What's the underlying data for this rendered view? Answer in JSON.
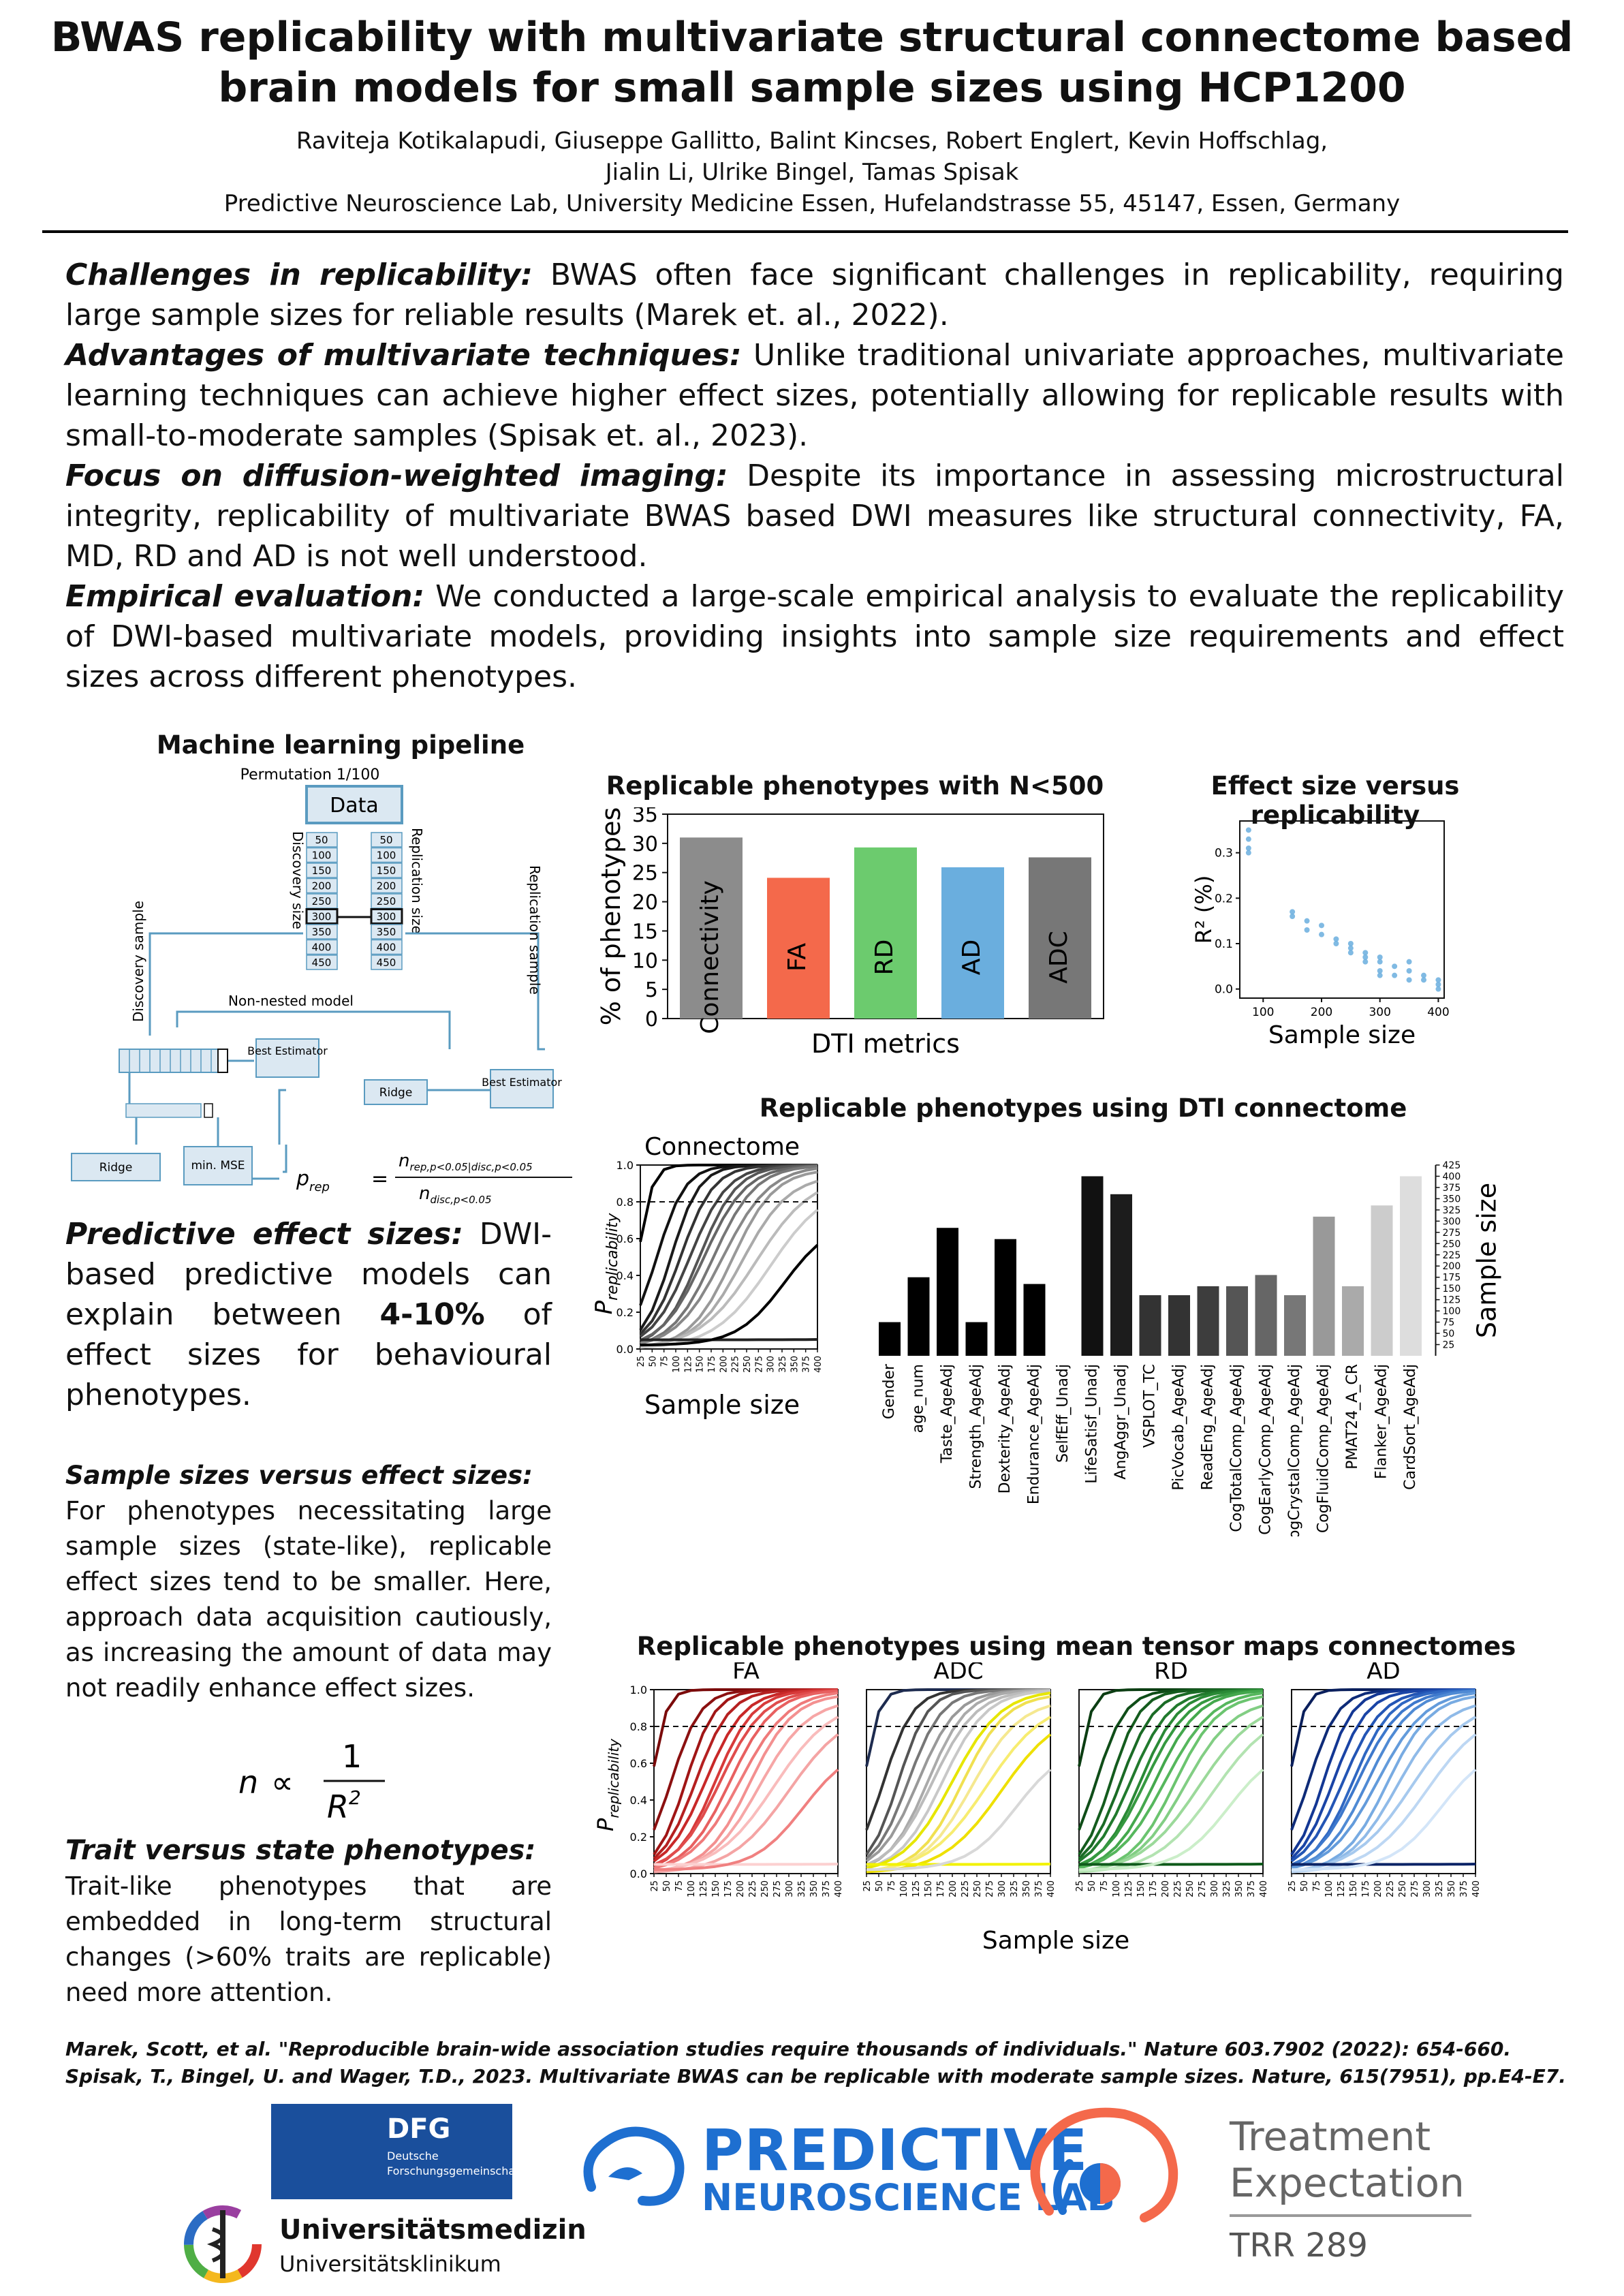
{
  "header": {
    "title_line1": "BWAS replicability with multivariate structural connectome based",
    "title_line2": "brain models for small sample sizes using HCP1200",
    "authors_line1": "Raviteja Kotikalapudi, Giuseppe Gallitto, Balint Kincses, Robert Englert, Kevin Hoffschlag,",
    "authors_line2": "Jialin Li, Ulrike Bingel, Tamas Spisak",
    "affiliation": "Predictive Neuroscience Lab, University Medicine Essen, Hufelandstrasse 55, 45147, Essen, Germany"
  },
  "intro": [
    {
      "heading": "Challenges in replicability:",
      "text": " BWAS often face significant challenges in replicability, requiring large sample sizes for reliable results (Marek et. al., 2022)."
    },
    {
      "heading": "Advantages of multivariate techniques:",
      "text": " Unlike traditional univariate approaches, multivariate learning techniques can achieve higher effect sizes, potentially allowing for replicable results with small-to-moderate samples (Spisak et. al., 2023)."
    },
    {
      "heading": "Focus on diffusion-weighted imaging:",
      "text": " Despite its importance in assessing microstructural integrity, replicability of multivariate BWAS based DWI measures like structural connectivity, FA, MD, RD and AD is not well understood."
    },
    {
      "heading": "Empirical evaluation:",
      "text": " We conducted a large-scale empirical analysis to evaluate the replicability of DWI-based multivariate models, providing insights into sample size requirements and effect sizes across different phenotypes."
    }
  ],
  "pipeline": {
    "title": "Machine learning pipeline",
    "permutation": "Permutation 1/100",
    "data": "Data",
    "discovery_size": "Discovery size",
    "replication_size": "Replication size",
    "sizes": [
      "50",
      "100",
      "150",
      "200",
      "250",
      "300",
      "350",
      "400",
      "450"
    ],
    "discovery_sample": "Discovery sample",
    "replication_sample": "Replication sample",
    "non_nested": "Non-nested model",
    "best_estimator": "Best Estimator",
    "ridge": "Ridge",
    "min_mse": "min. MSE",
    "formula_lhs": "p",
    "formula_lhs_sub": "rep",
    "formula_num": "n",
    "formula_num_sub": "rep,p<0.05|disc,p<0.05",
    "formula_den": "n",
    "formula_den_sub": "disc,p<0.05"
  },
  "left_text": {
    "pred_heading": "Predictive effect sizes:",
    "pred_a": " DWI-based predictive models can explain between ",
    "pred_bold": "4-10%",
    "pred_b": " of effect sizes for behavioural phenotypes.",
    "samp_heading": "Sample sizes versus effect sizes:",
    "samp_text": "For phenotypes necessitating large sample sizes (state-like), replicable effect sizes tend to be smaller. Here, approach data acquisition cautiously, as increasing the amount of data may not readily enhance effect sizes.",
    "formula_n": "n",
    "formula_prop": "∝",
    "formula_one": "1",
    "formula_R": "R",
    "formula_sq": "2",
    "trait_heading": "Trait versus state phenotypes:",
    "trait_text": "Trait-like phenotypes that are embedded in long-term structural changes (>60% traits are replicable) need more attention."
  },
  "bar_chart": {
    "title": "Replicable phenotypes with N<500",
    "xlabel": "DTI metrics",
    "ylabel": "% of phenotypes",
    "yticks": [
      "0",
      "5",
      "10",
      "15",
      "20",
      "25",
      "30",
      "35"
    ]
  },
  "scatter_chart": {
    "title": "Effect size versus replicability",
    "xlabel": "Sample size",
    "ylabel": "R² (%)",
    "xticks": [
      "100",
      "200",
      "300",
      "400"
    ],
    "yticks": [
      "0.0",
      "0.1",
      "0.2",
      "0.3"
    ]
  },
  "dti_chart": {
    "title": "Replicable phenotypes using DTI connectome",
    "panel": "Connectome",
    "xlabel": "Sample size",
    "ylabel": "P",
    "ylabel_sub": "replicability",
    "right_label": "Sample size",
    "yticks": [
      "0.0",
      "0.2",
      "0.4",
      "0.6",
      "0.8",
      "1.0"
    ],
    "xticks": [
      "25",
      "50",
      "75",
      "100",
      "125",
      "150",
      "175",
      "200",
      "225",
      "250",
      "275",
      "300",
      "325",
      "350",
      "375",
      "400"
    ],
    "right_ticks": [
      "25",
      "50",
      "75",
      "100",
      "125",
      "150",
      "175",
      "200",
      "225",
      "250",
      "275",
      "300",
      "325",
      "350",
      "375",
      "400",
      "425"
    ]
  },
  "tensor_chart": {
    "title": "Replicable phenotypes using mean tensor maps connectomes",
    "panels": [
      "FA",
      "ADC",
      "RD",
      "AD"
    ],
    "xlabel": "Sample size",
    "ylabel": "P",
    "ylabel_sub": "replicability",
    "yticks": [
      "0.0",
      "0.2",
      "0.4",
      "0.6",
      "0.8",
      "1.0"
    ],
    "xticks": [
      "25",
      "50",
      "75",
      "100",
      "125",
      "150",
      "175",
      "200",
      "225",
      "250",
      "275",
      "300",
      "325",
      "350",
      "375",
      "400"
    ]
  },
  "refs": [
    "Marek, Scott, et al. \"Reproducible brain-wide association studies require thousands of individuals.\" Nature 603.7902 (2022): 654-660.",
    "Spisak, T., Bingel, U. and Wager, T.D., 2023. Multivariate BWAS can be replicable with moderate sample sizes. Nature, 615(7951), pp.E4-E7."
  ],
  "logos": {
    "dfg": "DFG",
    "dfg_sub1": "Deutsche",
    "dfg_sub2": "Forschungsgemeinschaft",
    "uni1": "Universitätsmedizin",
    "uni2": "Universitätsklinikum",
    "pnl1": "PREDICTIVE",
    "pnl2": "NEUROSCIENCE LAB",
    "te1": "Treatment",
    "te2": "Expectation",
    "te3": "TRR 289"
  },
  "colors": {
    "connectivity": "#8c8c8c",
    "FA": "#f4694b",
    "RD": "#6ccb6e",
    "AD": "#6aaede",
    "ADC": "#777777"
  },
  "chart_data": [
    {
      "type": "bar",
      "title": "Replicable phenotypes with N<500",
      "xlabel": "DTI metrics",
      "ylabel": "% of phenotypes",
      "categories": [
        "Connectivity",
        "FA",
        "RD",
        "AD",
        "ADC"
      ],
      "values": [
        31.0,
        24.1,
        29.3,
        25.9,
        27.6
      ],
      "ylim": [
        0,
        35
      ]
    },
    {
      "type": "scatter",
      "title": "Effect size versus replicability",
      "xlabel": "Sample size",
      "ylabel": "R² (%)",
      "xlim": [
        60,
        410
      ],
      "ylim": [
        -0.02,
        0.37
      ],
      "x": [
        75,
        75,
        75,
        75,
        150,
        150,
        175,
        175,
        200,
        200,
        225,
        225,
        250,
        250,
        250,
        275,
        275,
        275,
        300,
        300,
        300,
        300,
        325,
        325,
        350,
        350,
        350,
        375,
        375,
        400,
        400,
        400
      ],
      "y": [
        0.35,
        0.33,
        0.31,
        0.3,
        0.17,
        0.16,
        0.15,
        0.13,
        0.14,
        0.12,
        0.11,
        0.1,
        0.1,
        0.09,
        0.08,
        0.08,
        0.07,
        0.06,
        0.07,
        0.06,
        0.04,
        0.03,
        0.05,
        0.03,
        0.06,
        0.04,
        0.02,
        0.03,
        0.02,
        0.02,
        0.01,
        0.0
      ]
    },
    {
      "type": "bar",
      "title": "Replicable phenotypes using DTI connectome",
      "ylabel": "Sample size",
      "categories": [
        "Gender",
        "age_num",
        "Taste_AgeAdj",
        "Strength_AgeAdj",
        "Dexterity_AgeAdj",
        "Endurance_AgeAdj",
        "SelfEff_Unadj",
        "LifeSatisf_Unadj",
        "AngAggr_Unadj",
        "VSPLOT_TC",
        "PicVocab_AgeAdj",
        "ReadEng_AgeAdj",
        "CogTotalComp_AgeAdj",
        "CogEarlyComp_AgeAdj",
        "CogCrystalComp_AgeAdj",
        "CogFluidComp_AgeAdj",
        "PMAT24_A_CR",
        "Flanker_AgeAdj",
        "CardSort_AgeAdj"
      ],
      "values": [
        75,
        175,
        285,
        75,
        260,
        160,
        0,
        400,
        360,
        135,
        135,
        155,
        155,
        180,
        135,
        310,
        155,
        335,
        400
      ],
      "ylim": [
        0,
        425
      ]
    },
    {
      "type": "line",
      "title": "Connectome",
      "xlabel": "Sample size",
      "ylabel": "P replicability",
      "x": [
        25,
        50,
        75,
        100,
        125,
        150,
        175,
        200,
        225,
        250,
        275,
        300,
        325,
        350,
        375,
        400
      ],
      "ylim": [
        0,
        1
      ],
      "threshold": 0.8
    },
    {
      "type": "line",
      "title": "Replicable phenotypes using mean tensor maps connectomes",
      "panels": [
        "FA",
        "ADC",
        "RD",
        "AD"
      ],
      "xlabel": "Sample size",
      "ylabel": "P replicability",
      "x": [
        25,
        50,
        75,
        100,
        125,
        150,
        175,
        200,
        225,
        250,
        275,
        300,
        325,
        350,
        375,
        400
      ],
      "ylim": [
        0,
        1
      ],
      "threshold": 0.8
    }
  ]
}
